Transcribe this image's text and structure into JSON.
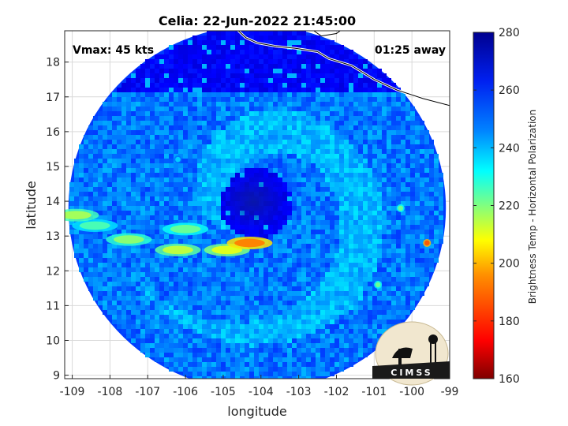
{
  "chart_data": {
    "type": "heatmap",
    "title": "Celia: 22-Jun-2022 21:45:00",
    "xlabel": "longitude",
    "ylabel": "latitude",
    "xlim": [
      -109.2,
      -99
    ],
    "ylim": [
      8.9,
      18.9
    ],
    "xticks": [
      -109,
      -108,
      -107,
      -106,
      -105,
      -104,
      -103,
      -102,
      -101,
      -100,
      -99
    ],
    "yticks": [
      9,
      10,
      11,
      12,
      13,
      14,
      15,
      16,
      17,
      18
    ],
    "xtick_labels": [
      "-109",
      "-108",
      "-107",
      "-106",
      "-105",
      "-104",
      "-103",
      "-102",
      "-101",
      "-100",
      "-99"
    ],
    "ytick_labels": [
      "9",
      "10",
      "11",
      "12",
      "13",
      "14",
      "15",
      "16",
      "17",
      "18"
    ],
    "grid": true,
    "swath": {
      "center_lon": -104.1,
      "center_lat": 13.8,
      "radius_deg": 5.0
    },
    "storm_center": {
      "lon": -104.2,
      "lat": 14.0
    },
    "colorbar": {
      "label": "Brightness Temp - Horizontal Polarization",
      "range": [
        160,
        280
      ],
      "ticks": [
        160,
        180,
        200,
        220,
        240,
        260,
        280
      ],
      "tick_labels": [
        "160",
        "180",
        "200",
        "220",
        "240",
        "260",
        "280"
      ],
      "colormap": [
        "#7f0000",
        "#ff0000",
        "#ff7f00",
        "#ffff00",
        "#7fff7f",
        "#00ffff",
        "#007fff",
        "#0000ff",
        "#00008f"
      ]
    },
    "features": [
      {
        "name": "rainband",
        "lon": -104.9,
        "lat": 12.6,
        "value": 208
      },
      {
        "name": "rainband",
        "lon": -106.2,
        "lat": 12.6,
        "value": 212
      },
      {
        "name": "rainband",
        "lon": -107.5,
        "lat": 12.9,
        "value": 218
      },
      {
        "name": "rainband",
        "lon": -108.4,
        "lat": 13.3,
        "value": 226
      },
      {
        "name": "rainband",
        "lon": -108.9,
        "lat": 13.6,
        "value": 215
      },
      {
        "name": "rainband",
        "lon": -106.0,
        "lat": 13.2,
        "value": 222
      },
      {
        "name": "rainband",
        "lon": -104.3,
        "lat": 12.8,
        "value": 190
      },
      {
        "name": "convection",
        "lon": -99.6,
        "lat": 12.8,
        "value": 185
      },
      {
        "name": "convection",
        "lon": -100.3,
        "lat": 13.8,
        "value": 222
      },
      {
        "name": "convection",
        "lon": -100.9,
        "lat": 11.6,
        "value": 222
      },
      {
        "name": "convection",
        "lon": -106.2,
        "lat": 15.2,
        "value": 240
      }
    ]
  },
  "annotations": {
    "vmax": "Vmax: 45 kts",
    "time_away": "01:25 away"
  },
  "logo": {
    "text": "CIMSS"
  },
  "colors": {
    "coastline": "#000000",
    "background": "#ffffff",
    "grid": "#d9d9d9"
  }
}
